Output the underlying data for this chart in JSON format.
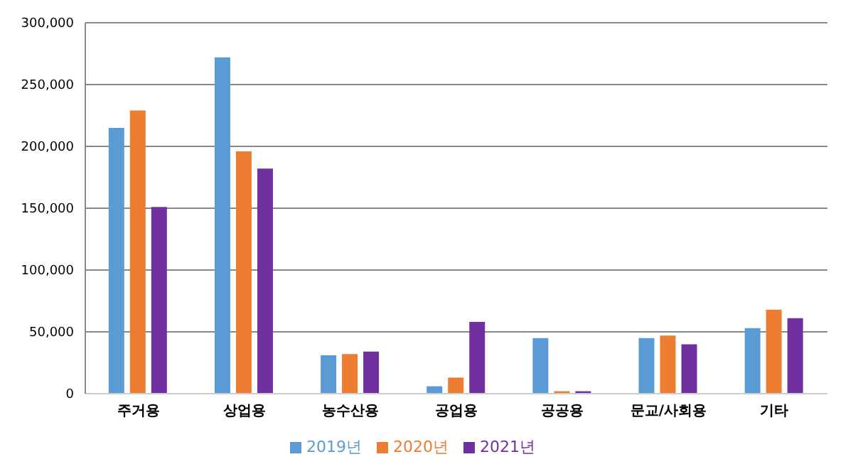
{
  "chart_data": {
    "type": "bar",
    "categories": [
      "주거용",
      "상업용",
      "농수산용",
      "공업용",
      "공공용",
      "문교/사회용",
      "기타"
    ],
    "series": [
      {
        "name": "2019년",
        "color": "#5b9bd5",
        "values": [
          215000,
          272000,
          31000,
          6000,
          45000,
          45000,
          53000
        ]
      },
      {
        "name": "2020년",
        "color": "#ed7d31",
        "values": [
          229000,
          196000,
          32000,
          13000,
          2000,
          47000,
          68000
        ]
      },
      {
        "name": "2021년",
        "color": "#7030a0",
        "values": [
          151000,
          182000,
          34000,
          58000,
          2000,
          40000,
          61000
        ]
      }
    ],
    "ylim": [
      0,
      300000
    ],
    "yticks": [
      0,
      {
        "value": 50000,
        "label": "50,000"
      },
      {
        "value": 100000,
        "label": "100,000"
      },
      {
        "value": 150000,
        "label": "150,000"
      },
      {
        "value": 200000,
        "label": "200,000"
      },
      {
        "value": 250000,
        "label": "250,000"
      },
      {
        "value": 300000,
        "label": "300,000"
      }
    ],
    "grid": "y",
    "legend": "bottom"
  }
}
